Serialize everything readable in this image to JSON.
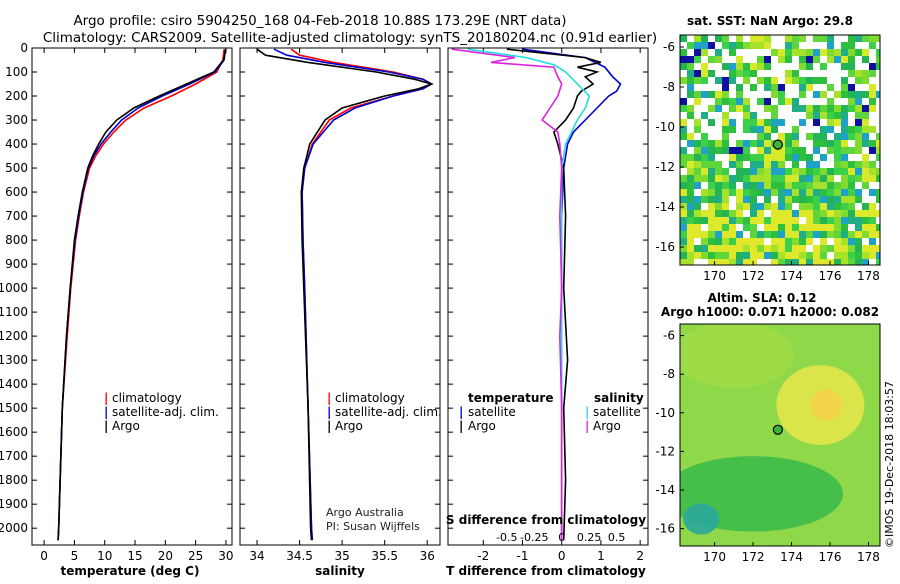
{
  "title": {
    "line1": "Argo profile: csiro 5904250_168 04-Feb-2018 10.88S 173.29E (NRT data)",
    "line2": "Climatology: CARS2009. Satellite-adjusted climatology: synTS_20180204.nc (0.91d earlier)"
  },
  "colors": {
    "climatology": "#ff0000",
    "satellite": "#0000cc",
    "argo": "#000000",
    "s_satellite": "#22dddd",
    "s_argo": "#dd22dd"
  },
  "chart_data": [
    {
      "type": "line",
      "name": "temperature",
      "xlabel": "temperature (deg C)",
      "ylabel": "",
      "xlim": [
        -2,
        31
      ],
      "ylim": [
        2070,
        0
      ],
      "xticks": [
        "0",
        "5",
        "10",
        "15",
        "20",
        "25",
        "30"
      ],
      "xtick_values": [
        0,
        5,
        10,
        15,
        20,
        25,
        30
      ],
      "yticks": [
        "0",
        "100",
        "200",
        "300",
        "400",
        "500",
        "600",
        "700",
        "800",
        "900",
        "1000",
        "1100",
        "1200",
        "1300",
        "1400",
        "1500",
        "1600",
        "1700",
        "1800",
        "1900",
        "2000"
      ],
      "ytick_values": [
        0,
        100,
        200,
        300,
        400,
        500,
        600,
        700,
        800,
        900,
        1000,
        1100,
        1200,
        1300,
        1400,
        1500,
        1600,
        1700,
        1800,
        1900,
        2000
      ],
      "legend": {
        "labels": [
          "climatology",
          "satellite-adj. clim.",
          "Argo"
        ],
        "marks": [
          "|",
          "|",
          "|"
        ]
      },
      "series": [
        {
          "name": "climatology",
          "color_key": "climatology",
          "depth": [
            5,
            50,
            100,
            150,
            200,
            250,
            300,
            350,
            400,
            450,
            500,
            600,
            700,
            800,
            1000,
            1200,
            1500,
            2000,
            2050
          ],
          "value": [
            29.7,
            29.5,
            28.5,
            25.0,
            21.0,
            16.5,
            13.5,
            11.5,
            9.8,
            8.5,
            7.5,
            6.5,
            5.8,
            5.2,
            4.4,
            3.8,
            3.0,
            2.4,
            2.3
          ]
        },
        {
          "name": "satellite-adj. clim.",
          "color_key": "satellite",
          "depth": [
            5,
            50,
            100,
            150,
            200,
            250,
            300,
            350,
            400,
            450,
            500,
            600,
            700,
            800,
            1000,
            1200,
            1500,
            2000,
            2050
          ],
          "value": [
            29.9,
            29.7,
            28.2,
            24.0,
            19.5,
            15.5,
            12.8,
            11.0,
            9.4,
            8.2,
            7.3,
            6.4,
            5.7,
            5.1,
            4.3,
            3.7,
            3.0,
            2.4,
            2.3
          ]
        },
        {
          "name": "Argo",
          "color_key": "argo",
          "depth": [
            5,
            50,
            100,
            150,
            200,
            250,
            300,
            350,
            400,
            450,
            500,
            600,
            700,
            800,
            1000,
            1200,
            1500,
            2000,
            2050
          ],
          "value": [
            30.0,
            29.6,
            28.0,
            23.5,
            19.0,
            14.8,
            12.0,
            10.2,
            9.0,
            8.0,
            7.2,
            6.3,
            5.6,
            5.0,
            4.3,
            3.7,
            3.0,
            2.4,
            2.3
          ]
        }
      ]
    },
    {
      "type": "line",
      "name": "salinity",
      "xlabel": "salinity",
      "xlim": [
        33.8,
        36.15
      ],
      "ylim": [
        2070,
        0
      ],
      "xticks": [
        "34",
        "34.5",
        "35",
        "35.5",
        "36"
      ],
      "xtick_values": [
        34,
        34.5,
        35,
        35.5,
        36
      ],
      "legend": {
        "labels": [
          "climatology",
          "satellite-adj. clim.",
          "Argo"
        ],
        "marks": [
          "|",
          "|",
          "|"
        ]
      },
      "credits": [
        "Argo Australia",
        "PI: Susan Wijffels"
      ],
      "series": [
        {
          "name": "climatology",
          "color_key": "climatology",
          "depth": [
            5,
            30,
            60,
            100,
            130,
            150,
            170,
            200,
            250,
            300,
            400,
            500,
            600,
            800,
            1000,
            1500,
            2000,
            2050
          ],
          "value": [
            34.4,
            34.5,
            34.9,
            35.6,
            35.95,
            36.05,
            35.95,
            35.6,
            35.1,
            34.85,
            34.65,
            34.56,
            34.53,
            34.54,
            34.56,
            34.6,
            34.64,
            34.65
          ]
        },
        {
          "name": "satellite-adj. clim.",
          "color_key": "satellite",
          "depth": [
            5,
            30,
            60,
            100,
            130,
            150,
            170,
            200,
            250,
            300,
            400,
            500,
            600,
            800,
            1000,
            1500,
            2000,
            2050
          ],
          "value": [
            34.2,
            34.35,
            34.8,
            35.55,
            35.95,
            36.05,
            35.95,
            35.6,
            35.15,
            34.9,
            34.66,
            34.56,
            34.53,
            34.54,
            34.56,
            34.6,
            34.64,
            34.65
          ]
        },
        {
          "name": "Argo",
          "color_key": "argo",
          "depth": [
            5,
            30,
            60,
            100,
            130,
            150,
            170,
            200,
            250,
            300,
            400,
            500,
            600,
            800,
            1000,
            1500,
            2000,
            2050
          ],
          "value": [
            34.0,
            34.1,
            34.6,
            35.4,
            35.85,
            36.05,
            35.9,
            35.5,
            35.0,
            34.8,
            34.62,
            34.55,
            34.52,
            34.53,
            34.55,
            34.6,
            34.63,
            34.64
          ]
        }
      ]
    },
    {
      "type": "line",
      "name": "differences",
      "xlabel": "T difference from climatology",
      "xlabel_top": "S difference from climatology",
      "xlim": [
        -2.9,
        2.2
      ],
      "ylim": [
        2070,
        0
      ],
      "xticks": [
        "-2",
        "-1",
        "0",
        "1",
        "2"
      ],
      "xtick_values": [
        -2,
        -1,
        0,
        1,
        2
      ],
      "s_xticks": [
        "-0.5",
        "-0.25",
        "0",
        "0.25",
        "0.5"
      ],
      "legend_left": {
        "header": "temperature",
        "labels": [
          "satellite",
          "Argo"
        ],
        "marks": [
          "|",
          "|"
        ]
      },
      "legend_right": {
        "header": "salinity",
        "labels": [
          "satellite",
          "Argo"
        ],
        "marks": [
          "|",
          "|"
        ]
      },
      "series": [
        {
          "name": "T satellite",
          "color_key": "satellite",
          "depth": [
            5,
            40,
            80,
            120,
            150,
            180,
            200,
            250,
            300,
            350,
            400,
            500,
            700,
            1000,
            1500,
            2000,
            2050
          ],
          "value": [
            -1.0,
            0.6,
            1.1,
            1.3,
            1.5,
            1.4,
            1.2,
            0.9,
            0.6,
            0.3,
            0.15,
            0.05,
            0.0,
            0.0,
            0.0,
            0.0,
            0.0
          ]
        },
        {
          "name": "T Argo",
          "color_key": "argo",
          "depth": [
            5,
            40,
            60,
            80,
            100,
            120,
            150,
            180,
            200,
            250,
            300,
            350,
            400,
            500,
            700,
            1000,
            1300,
            1500,
            1800,
            2050
          ],
          "value": [
            -1.4,
            0.6,
            1.0,
            0.4,
            0.9,
            0.6,
            0.8,
            0.5,
            0.4,
            0.3,
            0.1,
            -0.2,
            -0.1,
            0.05,
            0.1,
            0.05,
            0.15,
            0.05,
            0.1,
            0.05
          ]
        },
        {
          "name": "S satellite",
          "color_key": "s_satellite",
          "depth": [
            5,
            40,
            70,
            100,
            150,
            200,
            250,
            300,
            400,
            500,
            700,
            1000,
            1500,
            2050
          ],
          "value": [
            -2.4,
            -0.9,
            -0.2,
            0.1,
            0.4,
            0.7,
            0.6,
            0.4,
            0.1,
            0.0,
            0.0,
            0.0,
            0.0,
            0.0
          ]
        },
        {
          "name": "S Argo",
          "color_key": "s_argo",
          "depth": [
            5,
            40,
            60,
            80,
            120,
            150,
            200,
            250,
            300,
            350,
            400,
            500,
            700,
            1000,
            1200,
            1500,
            2050
          ],
          "value": [
            -2.8,
            -1.2,
            -1.8,
            -0.2,
            -0.1,
            0.0,
            -0.1,
            -0.3,
            -0.5,
            -0.1,
            -0.05,
            0.0,
            -0.05,
            0.0,
            -0.05,
            0.0,
            0.0
          ]
        }
      ]
    },
    {
      "type": "heatmap",
      "name": "sst-map",
      "title": "sat. SST: NaN Argo: 29.8",
      "xticks": [
        "170",
        "172",
        "174",
        "176",
        "178"
      ],
      "xtick_values": [
        170,
        172,
        174,
        176,
        178
      ],
      "yticks": [
        "-6",
        "-8",
        "-10",
        "-12",
        "-14",
        "-16"
      ],
      "ytick_values": [
        -6,
        -8,
        -10,
        -12,
        -14,
        -16
      ],
      "xlim": [
        168.2,
        178.6
      ],
      "ylim": [
        -16.9,
        -5.4
      ],
      "float_position": {
        "lon": 173.29,
        "lat": -10.88
      }
    },
    {
      "type": "heatmap",
      "name": "sla-map",
      "title_line1": "Altim. SLA: 0.12",
      "title_line2": "Argo h1000: 0.071 h2000: 0.082",
      "xticks": [
        "170",
        "172",
        "174",
        "176",
        "178"
      ],
      "xtick_values": [
        170,
        172,
        174,
        176,
        178
      ],
      "yticks": [
        "-6",
        "-8",
        "-10",
        "-12",
        "-14",
        "-16"
      ],
      "ytick_values": [
        -6,
        -8,
        -10,
        -12,
        -14,
        -16
      ],
      "xlim": [
        168.2,
        178.6
      ],
      "ylim": [
        -16.9,
        -5.4
      ],
      "float_position": {
        "lon": 173.29,
        "lat": -10.88
      }
    }
  ],
  "footer": "©IMOS 19-Dec-2018 18:03:57"
}
